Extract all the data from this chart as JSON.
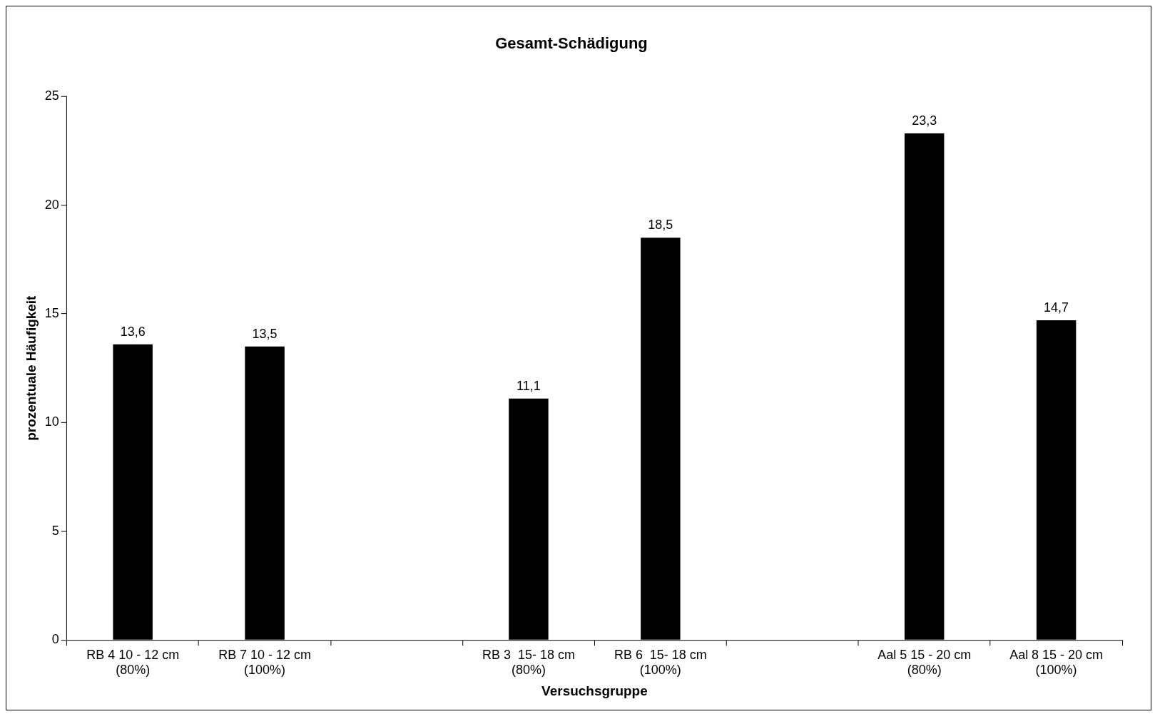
{
  "chart_data": {
    "type": "bar",
    "title": "Gesamt-Schädigung",
    "xlabel": "Versuchsgruppe",
    "ylabel": "prozentuale Häufigkeit",
    "categories": [
      "RB 4 10 - 12 cm\n(80%)",
      "RB 7 10 - 12 cm\n(100%)",
      null,
      "RB 3  15- 18 cm\n(80%)",
      "RB 6  15- 18 cm\n(100%)",
      null,
      "Aal 5 15 - 20 cm\n(80%)",
      "Aal 8 15 - 20 cm\n(100%)"
    ],
    "values": [
      13.6,
      13.5,
      null,
      11.1,
      18.5,
      null,
      23.3,
      14.7
    ],
    "value_labels": [
      "13,6",
      "13,5",
      null,
      "11,1",
      "18,5",
      null,
      "23,3",
      "14,7"
    ],
    "color": "#000000",
    "ylim": [
      0,
      25
    ],
    "yticks": [
      0,
      5,
      10,
      15,
      20,
      25
    ],
    "grid": false,
    "legend": false
  }
}
